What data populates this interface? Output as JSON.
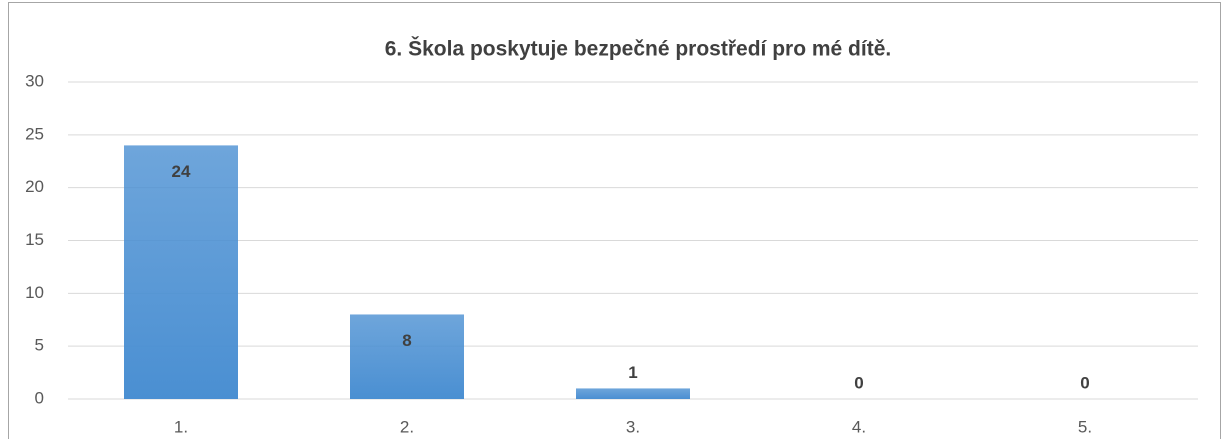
{
  "chart_data": {
    "type": "bar",
    "title": "6. Škola poskytuje bezpečné prostředí pro mé dítě.",
    "categories": [
      "1.",
      "2.",
      "3.",
      "4.",
      "5."
    ],
    "values": [
      24,
      8,
      1,
      0,
      0
    ],
    "color": "#4a8fd2",
    "ylim": [
      0,
      30
    ],
    "yticks": [
      0,
      5,
      10,
      15,
      20,
      25,
      30
    ],
    "grid": true
  }
}
